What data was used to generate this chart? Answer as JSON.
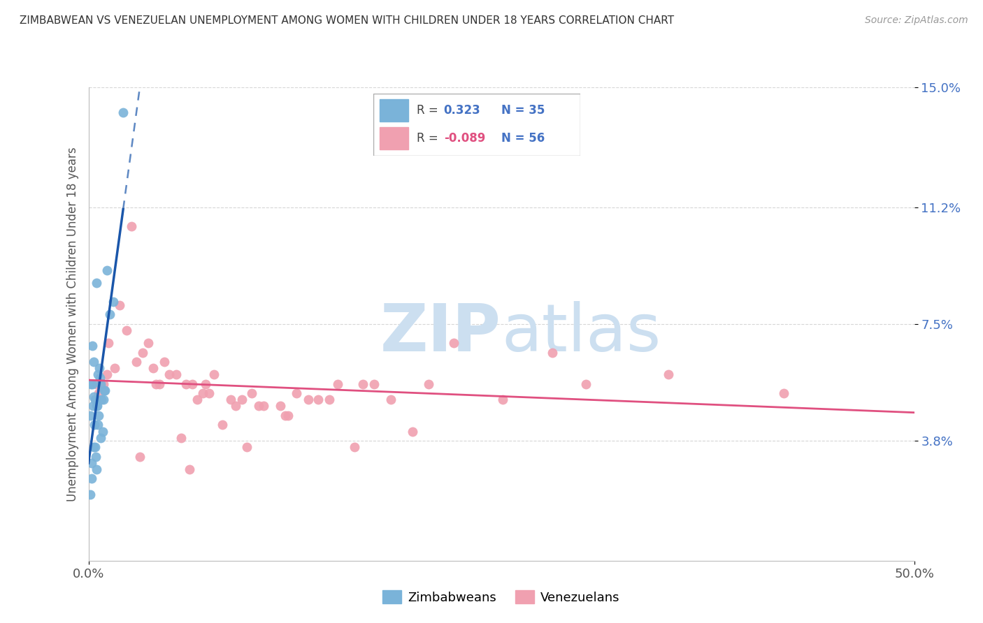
{
  "title": "ZIMBABWEAN VS VENEZUELAN UNEMPLOYMENT AMONG WOMEN WITH CHILDREN UNDER 18 YEARS CORRELATION CHART",
  "source": "Source: ZipAtlas.com",
  "ylabel": "Unemployment Among Women with Children Under 18 years",
  "xlim": [
    0.0,
    50.0
  ],
  "ylim": [
    0.0,
    15.0
  ],
  "ytick_positions": [
    3.8,
    7.5,
    11.2,
    15.0
  ],
  "ytick_labels": [
    "3.8%",
    "7.5%",
    "11.2%",
    "15.0%"
  ],
  "xtick_positions": [
    0.0,
    50.0
  ],
  "xtick_labels": [
    "0.0%",
    "50.0%"
  ],
  "grid_color": "#cccccc",
  "background_color": "#ffffff",
  "watermark_zip": "ZIP",
  "watermark_atlas": "atlas",
  "watermark_color": "#ccdff0",
  "label1": "Zimbabweans",
  "label2": "Venezuelans",
  "color1": "#7ab3d9",
  "color2": "#f0a0b0",
  "trendline1_color": "#1a56aa",
  "trendline2_color": "#e05080",
  "legend_r1_val": "0.323",
  "legend_n1": "N = 35",
  "legend_r2_val": "-0.089",
  "legend_n2": "N = 56",
  "legend_val_color": "#4472c4",
  "legend_r2_val_color": "#e05080",
  "zim_x": [
    2.1,
    0.5,
    1.1,
    0.25,
    0.7,
    1.3,
    0.3,
    0.5,
    0.8,
    1.0,
    0.15,
    0.55,
    0.65,
    0.3,
    0.1,
    0.28,
    0.45,
    0.38,
    0.75,
    0.9,
    0.58,
    0.18,
    0.85,
    0.22,
    0.42,
    0.6,
    1.5,
    0.35,
    0.72,
    0.2,
    0.52,
    0.95,
    0.32,
    0.48,
    0.12
  ],
  "zim_y": [
    14.2,
    8.8,
    9.2,
    6.8,
    5.8,
    7.8,
    5.2,
    4.9,
    5.1,
    5.4,
    5.6,
    5.9,
    6.1,
    6.3,
    4.6,
    4.9,
    3.3,
    3.6,
    3.9,
    5.1,
    4.3,
    2.6,
    4.1,
    5.6,
    5.1,
    4.6,
    8.2,
    4.3,
    5.6,
    3.1,
    4.9,
    5.4,
    3.6,
    2.9,
    2.1
  ],
  "ven_x": [
    0.5,
    1.2,
    2.6,
    3.9,
    5.3,
    7.1,
    4.6,
    1.9,
    6.3,
    8.6,
    10.3,
    12.6,
    15.1,
    18.3,
    3.3,
    4.9,
    6.9,
    9.3,
    11.6,
    2.3,
    1.6,
    0.9,
    3.6,
    5.9,
    7.6,
    9.9,
    13.3,
    16.6,
    20.6,
    28.1,
    35.1,
    42.1,
    4.3,
    6.6,
    8.9,
    11.9,
    14.6,
    0.6,
    1.1,
    2.9,
    4.1,
    7.3,
    10.6,
    13.9,
    17.3,
    22.1,
    3.1,
    5.6,
    8.1,
    12.1,
    16.1,
    19.6,
    25.1,
    6.1,
    9.6,
    30.1
  ],
  "ven_y": [
    5.6,
    6.9,
    10.6,
    6.1,
    5.9,
    5.6,
    6.3,
    8.1,
    5.6,
    5.1,
    4.9,
    5.3,
    5.6,
    5.1,
    6.6,
    5.9,
    5.3,
    5.1,
    4.9,
    7.3,
    6.1,
    5.6,
    6.9,
    5.6,
    5.9,
    5.3,
    5.1,
    5.6,
    5.6,
    6.6,
    5.9,
    5.3,
    5.6,
    5.1,
    4.9,
    4.6,
    5.1,
    5.3,
    5.9,
    6.3,
    5.6,
    5.3,
    4.9,
    5.1,
    5.6,
    6.9,
    3.3,
    3.9,
    4.3,
    4.6,
    3.6,
    4.1,
    5.1,
    2.9,
    3.6,
    5.6
  ]
}
